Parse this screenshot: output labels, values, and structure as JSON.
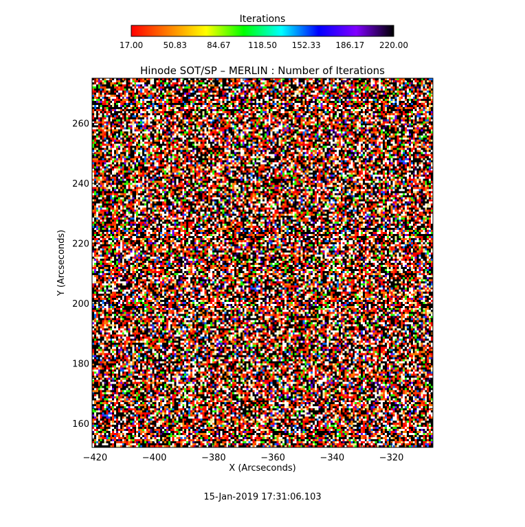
{
  "page": {
    "timestamp": "15-Jan-2019 17:31:06.103"
  },
  "colorbar": {
    "title": "Iterations",
    "tick_labels": [
      "17.00",
      "50.83",
      "84.67",
      "118.50",
      "152.33",
      "186.17",
      "220.00"
    ],
    "range": [
      17,
      220
    ],
    "palette": [
      "#ff0000",
      "#ff8000",
      "#ffff00",
      "#00ff00",
      "#00ffff",
      "#0000ff",
      "#8000ff",
      "#000000"
    ]
  },
  "chart_data": {
    "type": "heatmap",
    "title": "Hinode SOT/SP – MERLIN : Number of Iterations",
    "xlabel": "X (Arcseconds)",
    "ylabel": "Y (Arcseconds)",
    "xlim": [
      -421,
      -306
    ],
    "ylim": [
      152,
      275
    ],
    "x_ticks": [
      -420,
      -400,
      -380,
      -360,
      -340,
      -320
    ],
    "y_ticks": [
      160,
      180,
      200,
      220,
      240,
      260
    ],
    "value_range": [
      17,
      220
    ],
    "dominant_values": [
      17,
      40,
      120,
      220
    ],
    "grid": false,
    "legend": "colorbar-top"
  }
}
